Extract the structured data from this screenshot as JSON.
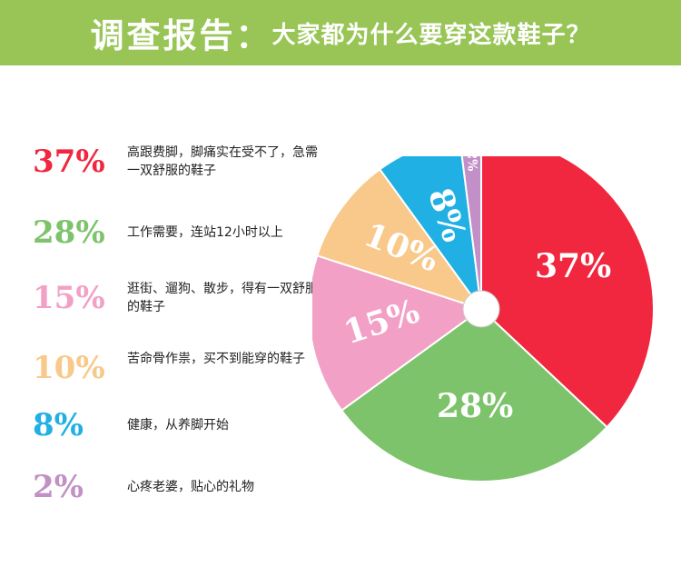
{
  "header": {
    "title_main": "调查报告：",
    "title_sub": "大家都为什么要穿这款鞋子？"
  },
  "legend": [
    {
      "percent": "37%",
      "text": "高跟费脚，脚痛实在受不了，急需一双舒服的鞋子",
      "color": "#f0273f"
    },
    {
      "percent": "28%",
      "text": "工作需要，连站12小时以上",
      "color": "#7dc36b"
    },
    {
      "percent": "15%",
      "text": "逛街、遛狗、散步，得有一双舒服的鞋子",
      "color": "#f2a0c6"
    },
    {
      "percent": "10%",
      "text": "苦命骨作祟，买不到能穿的鞋子",
      "color": "#f8c98a"
    },
    {
      "percent": "8%",
      "text": "健康，从养脚开始",
      "color": "#21b0e4"
    },
    {
      "percent": "2%",
      "text": "心疼老婆，贴心的礼物",
      "color": "#c28fc6"
    }
  ],
  "chart_data": {
    "type": "pie",
    "categories": [
      "高跟费脚，脚痛实在受不了，急需一双舒服的鞋子",
      "工作需要，连站12小时以上",
      "逛街、遛狗、散步，得有一双舒服的鞋子",
      "苦命骨作祟，买不到能穿的鞋子",
      "健康，从养脚开始",
      "心疼老婆，贴心的礼物"
    ],
    "values": [
      37,
      28,
      15,
      10,
      8,
      2
    ],
    "labels": [
      "37%",
      "28%",
      "15%",
      "10%",
      "8%",
      "2%"
    ],
    "colors": [
      "#f0273f",
      "#7dc36b",
      "#f2a0c6",
      "#f8c98a",
      "#21b0e4",
      "#c28fc6"
    ],
    "title": "调查报告：大家都为什么要穿这款鞋子？",
    "donut_hole": true
  }
}
